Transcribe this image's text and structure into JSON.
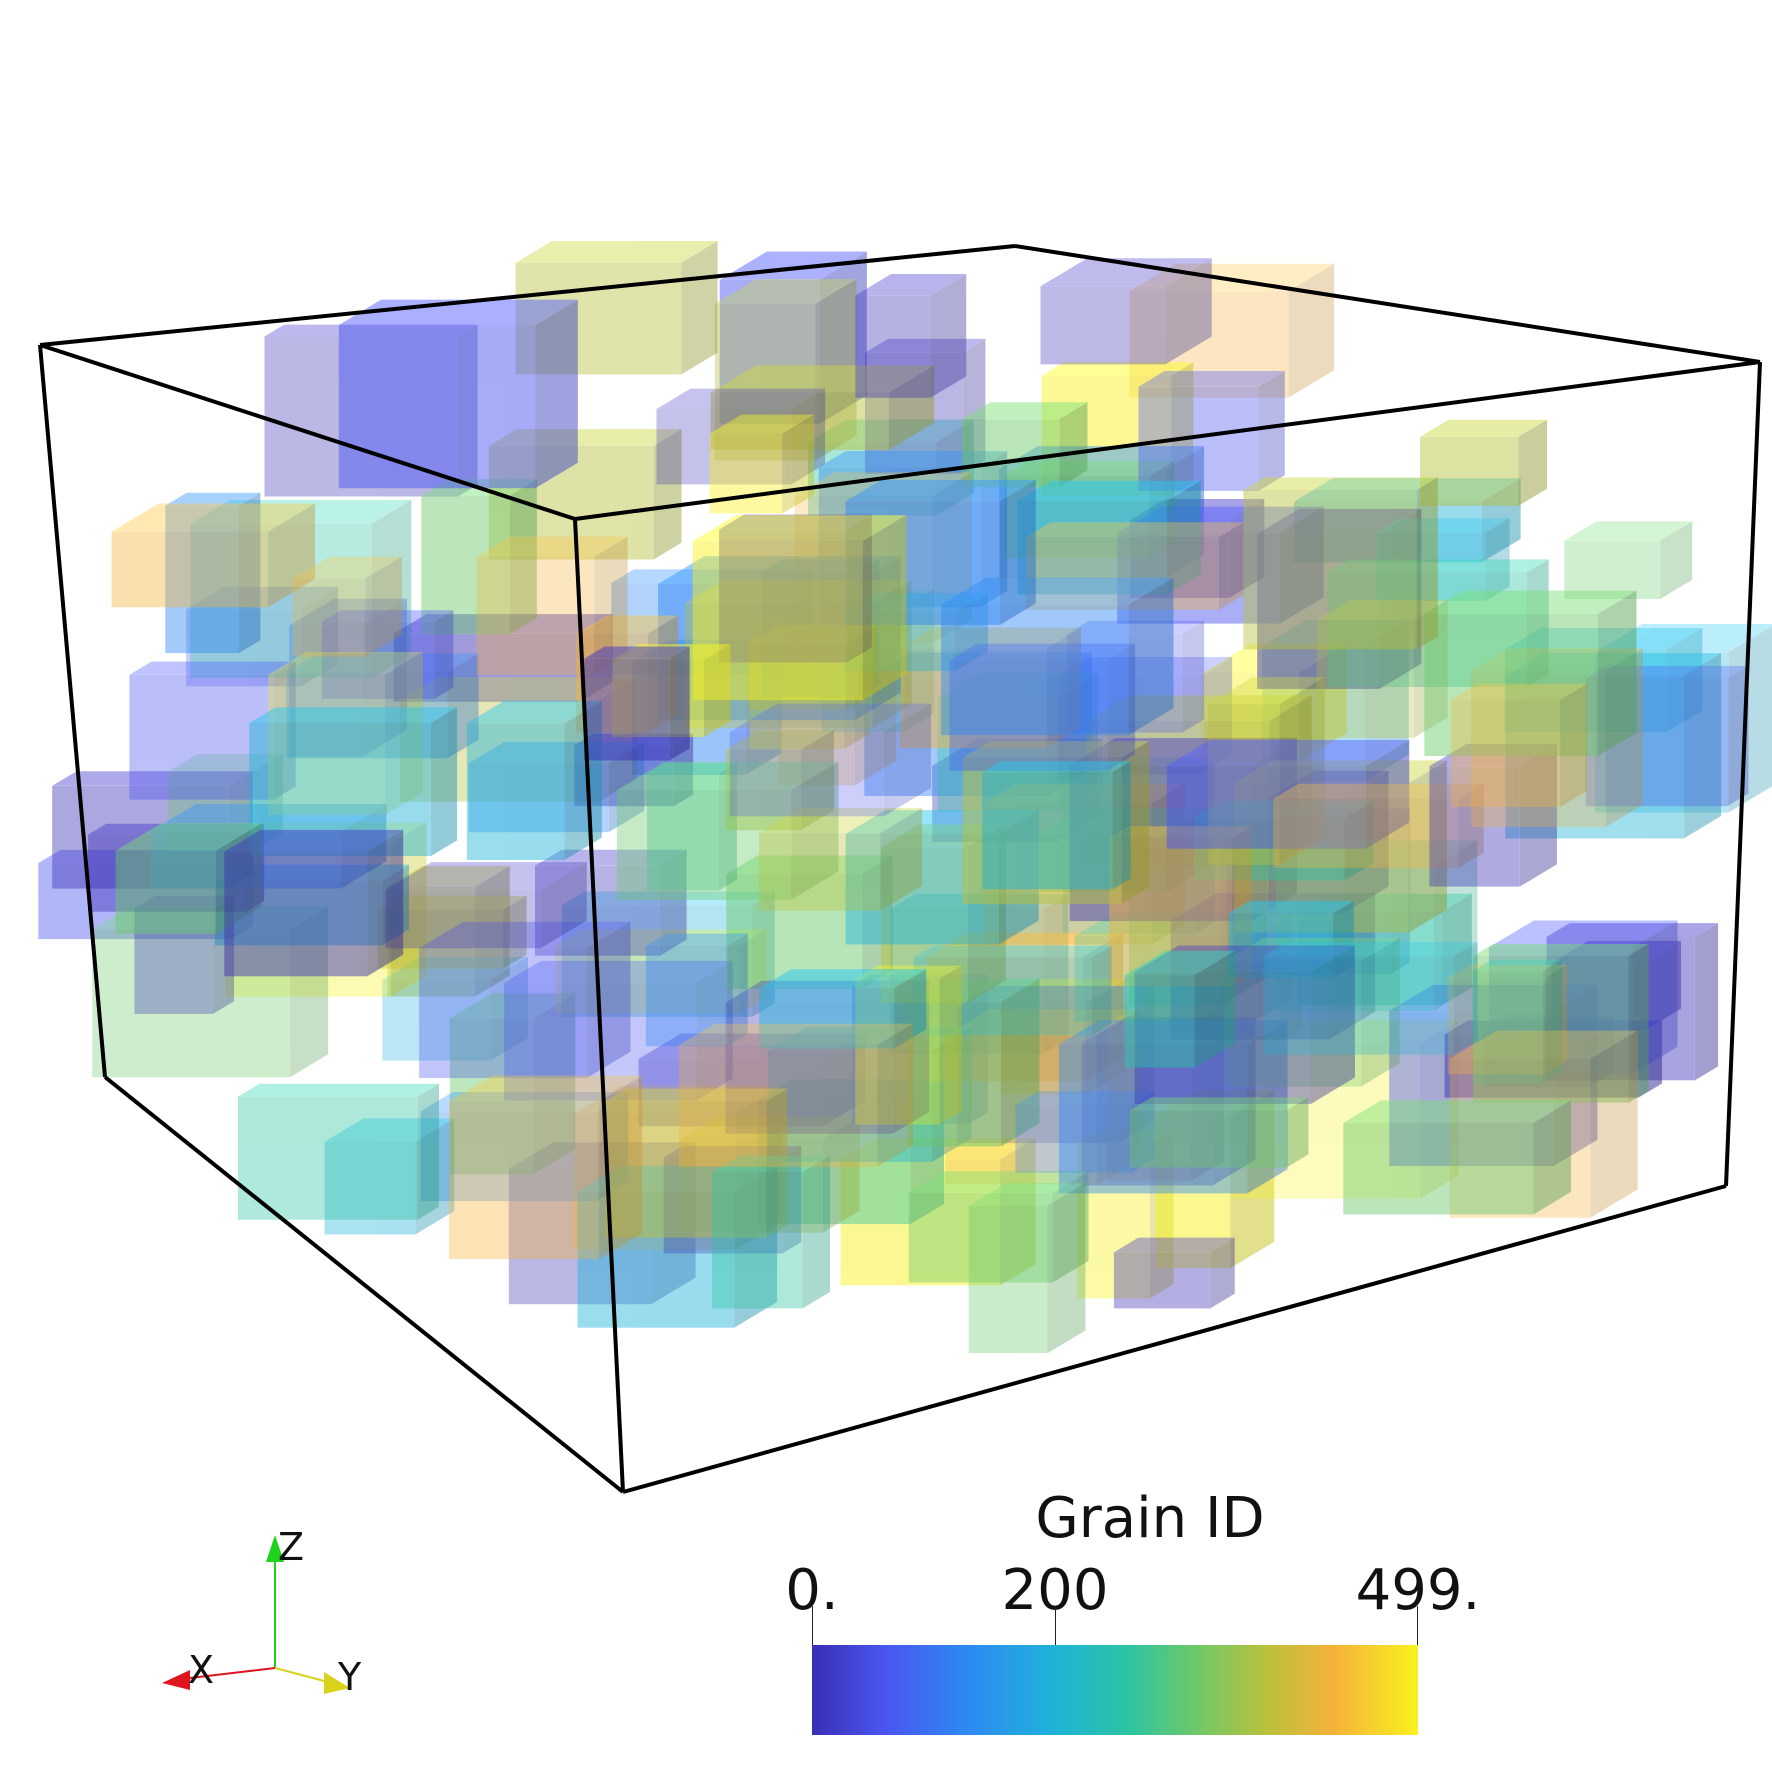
{
  "colorbar": {
    "title": "Grain ID",
    "min_label": "0.",
    "mid_label": "200",
    "max_label": "499.",
    "min": 0,
    "mid": 200,
    "max": 499,
    "colors": [
      "#3a2fb5",
      "#4a55f0",
      "#2f87f5",
      "#1fb3d8",
      "#2cc3a3",
      "#6bc96a",
      "#b9c13d",
      "#f5b23a",
      "#f8f21e"
    ]
  },
  "orientation_axes": {
    "x_label": "X",
    "y_label": "Y",
    "z_label": "Z",
    "x_color": "#e0141e",
    "y_color": "#d9d21c",
    "z_color": "#1ed21e"
  },
  "bounding_box": {
    "outline_color": "#000000"
  }
}
